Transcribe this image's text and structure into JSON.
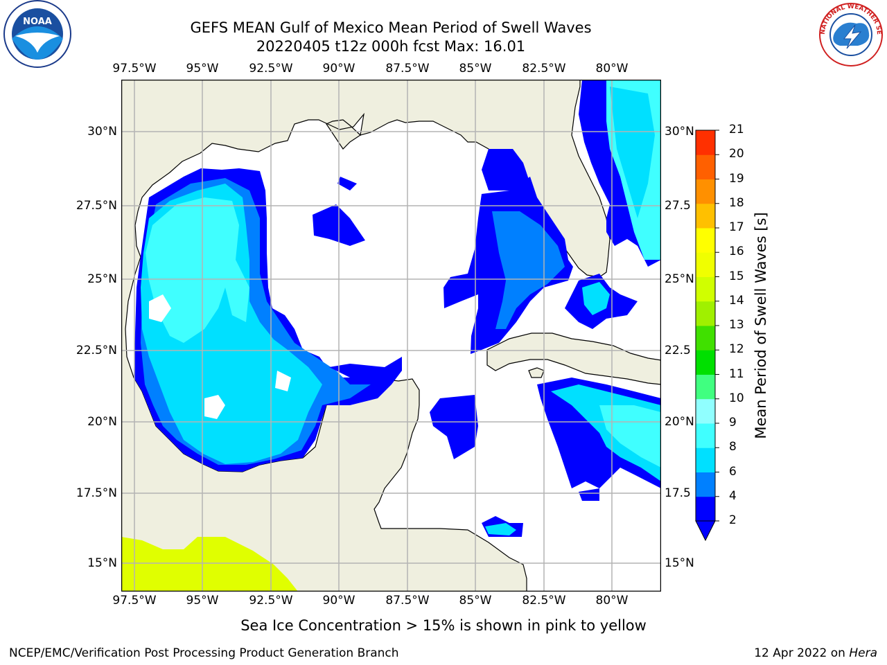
{
  "header": {
    "title": "GEFS MEAN Gulf of Mexico Mean Period of Swell Waves",
    "subtitle": "20220405 t12z 000h fcst   Max: 16.01"
  },
  "map": {
    "lon_labels": [
      "97.5°W",
      "95°W",
      "92.5°W",
      "90°W",
      "87.5°W",
      "85°W",
      "82.5°W",
      "80°W"
    ],
    "lat_labels": [
      "30°N",
      "27.5°N",
      "25°N",
      "22.5°N",
      "20°N",
      "17.5°N",
      "15°N"
    ],
    "lat_labels_right": [
      "30°N",
      "27.5",
      "25°N",
      "22.5",
      "20°N",
      "17.5",
      "15°N"
    ],
    "land_color": "#efefdf",
    "grid_color": "#b4b4b4"
  },
  "colorbar": {
    "label": "Mean Period of Swell Waves [s]",
    "ticks": [
      "2",
      "4",
      "6",
      "8",
      "9",
      "10",
      "11",
      "12",
      "13",
      "14",
      "15",
      "16",
      "17",
      "18",
      "19",
      "20",
      "21"
    ],
    "colors": [
      "#0000ff",
      "#0080ff",
      "#00e0ff",
      "#40ffff",
      "#90ffff",
      "#40ff80",
      "#00e000",
      "#40e000",
      "#a0f000",
      "#d0ff00",
      "#f0ff00",
      "#ffff00",
      "#ffc000",
      "#ff9000",
      "#ff6000",
      "#ff3000",
      "#ff0000"
    ],
    "under_color": "#0000ff"
  },
  "caption": "Sea Ice Concentration > 15% is shown in pink to yellow",
  "footer": {
    "left": "NCEP/EMC/Verification Post Processing Product Generation Branch",
    "date": "12 Apr 2022 on ",
    "host": "Hera"
  },
  "logos": {
    "noaa_text": "NOAA",
    "nws_text": "NATIONAL WEATHER SERVICE"
  }
}
